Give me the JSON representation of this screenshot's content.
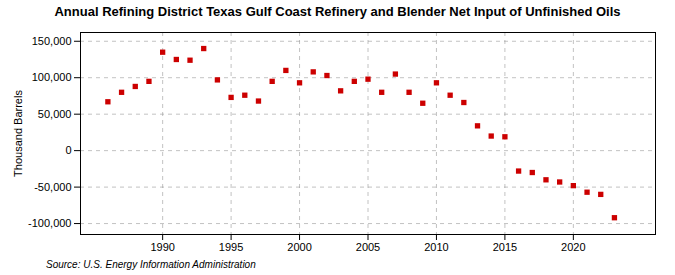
{
  "chart_data": {
    "type": "scatter",
    "title": "Annual Refining District Texas Gulf Coast Refinery and Blender Net Input of Unfinished Oils",
    "ylabel": "Thousand Barrels",
    "source": "Source: U.S. Energy Information Administration",
    "x": [
      1986,
      1987,
      1988,
      1989,
      1990,
      1991,
      1992,
      1993,
      1994,
      1995,
      1996,
      1997,
      1998,
      1999,
      2000,
      2001,
      2002,
      2003,
      2004,
      2005,
      2006,
      2007,
      2008,
      2009,
      2010,
      2011,
      2012,
      2013,
      2014,
      2015,
      2016,
      2017,
      2018,
      2019,
      2020,
      2021,
      2022,
      2023
    ],
    "values": [
      67000,
      80000,
      88000,
      95000,
      135000,
      125000,
      124000,
      140000,
      97000,
      73000,
      76000,
      68000,
      95000,
      110000,
      93000,
      108000,
      103000,
      82000,
      95000,
      98000,
      80000,
      105000,
      80000,
      65000,
      93000,
      76000,
      66000,
      34000,
      20000,
      19000,
      -28000,
      -30000,
      -40000,
      -43000,
      -48000,
      -57000,
      -60000,
      -92000
    ],
    "color": "#cc0000",
    "marker": "square",
    "xlim": [
      1984,
      2026
    ],
    "ylim": [
      -115000,
      162000
    ],
    "xticks": [
      1990,
      1995,
      2000,
      2005,
      2010,
      2015,
      2020
    ],
    "yticks": [
      {
        "value": -100000,
        "label": "-100,000"
      },
      {
        "value": -50000,
        "label": "-50,000"
      },
      0,
      {
        "value": 50000,
        "label": "50,000"
      },
      {
        "value": 100000,
        "label": "100,000"
      },
      {
        "value": 150000,
        "label": "150,000"
      }
    ],
    "grid": true
  }
}
